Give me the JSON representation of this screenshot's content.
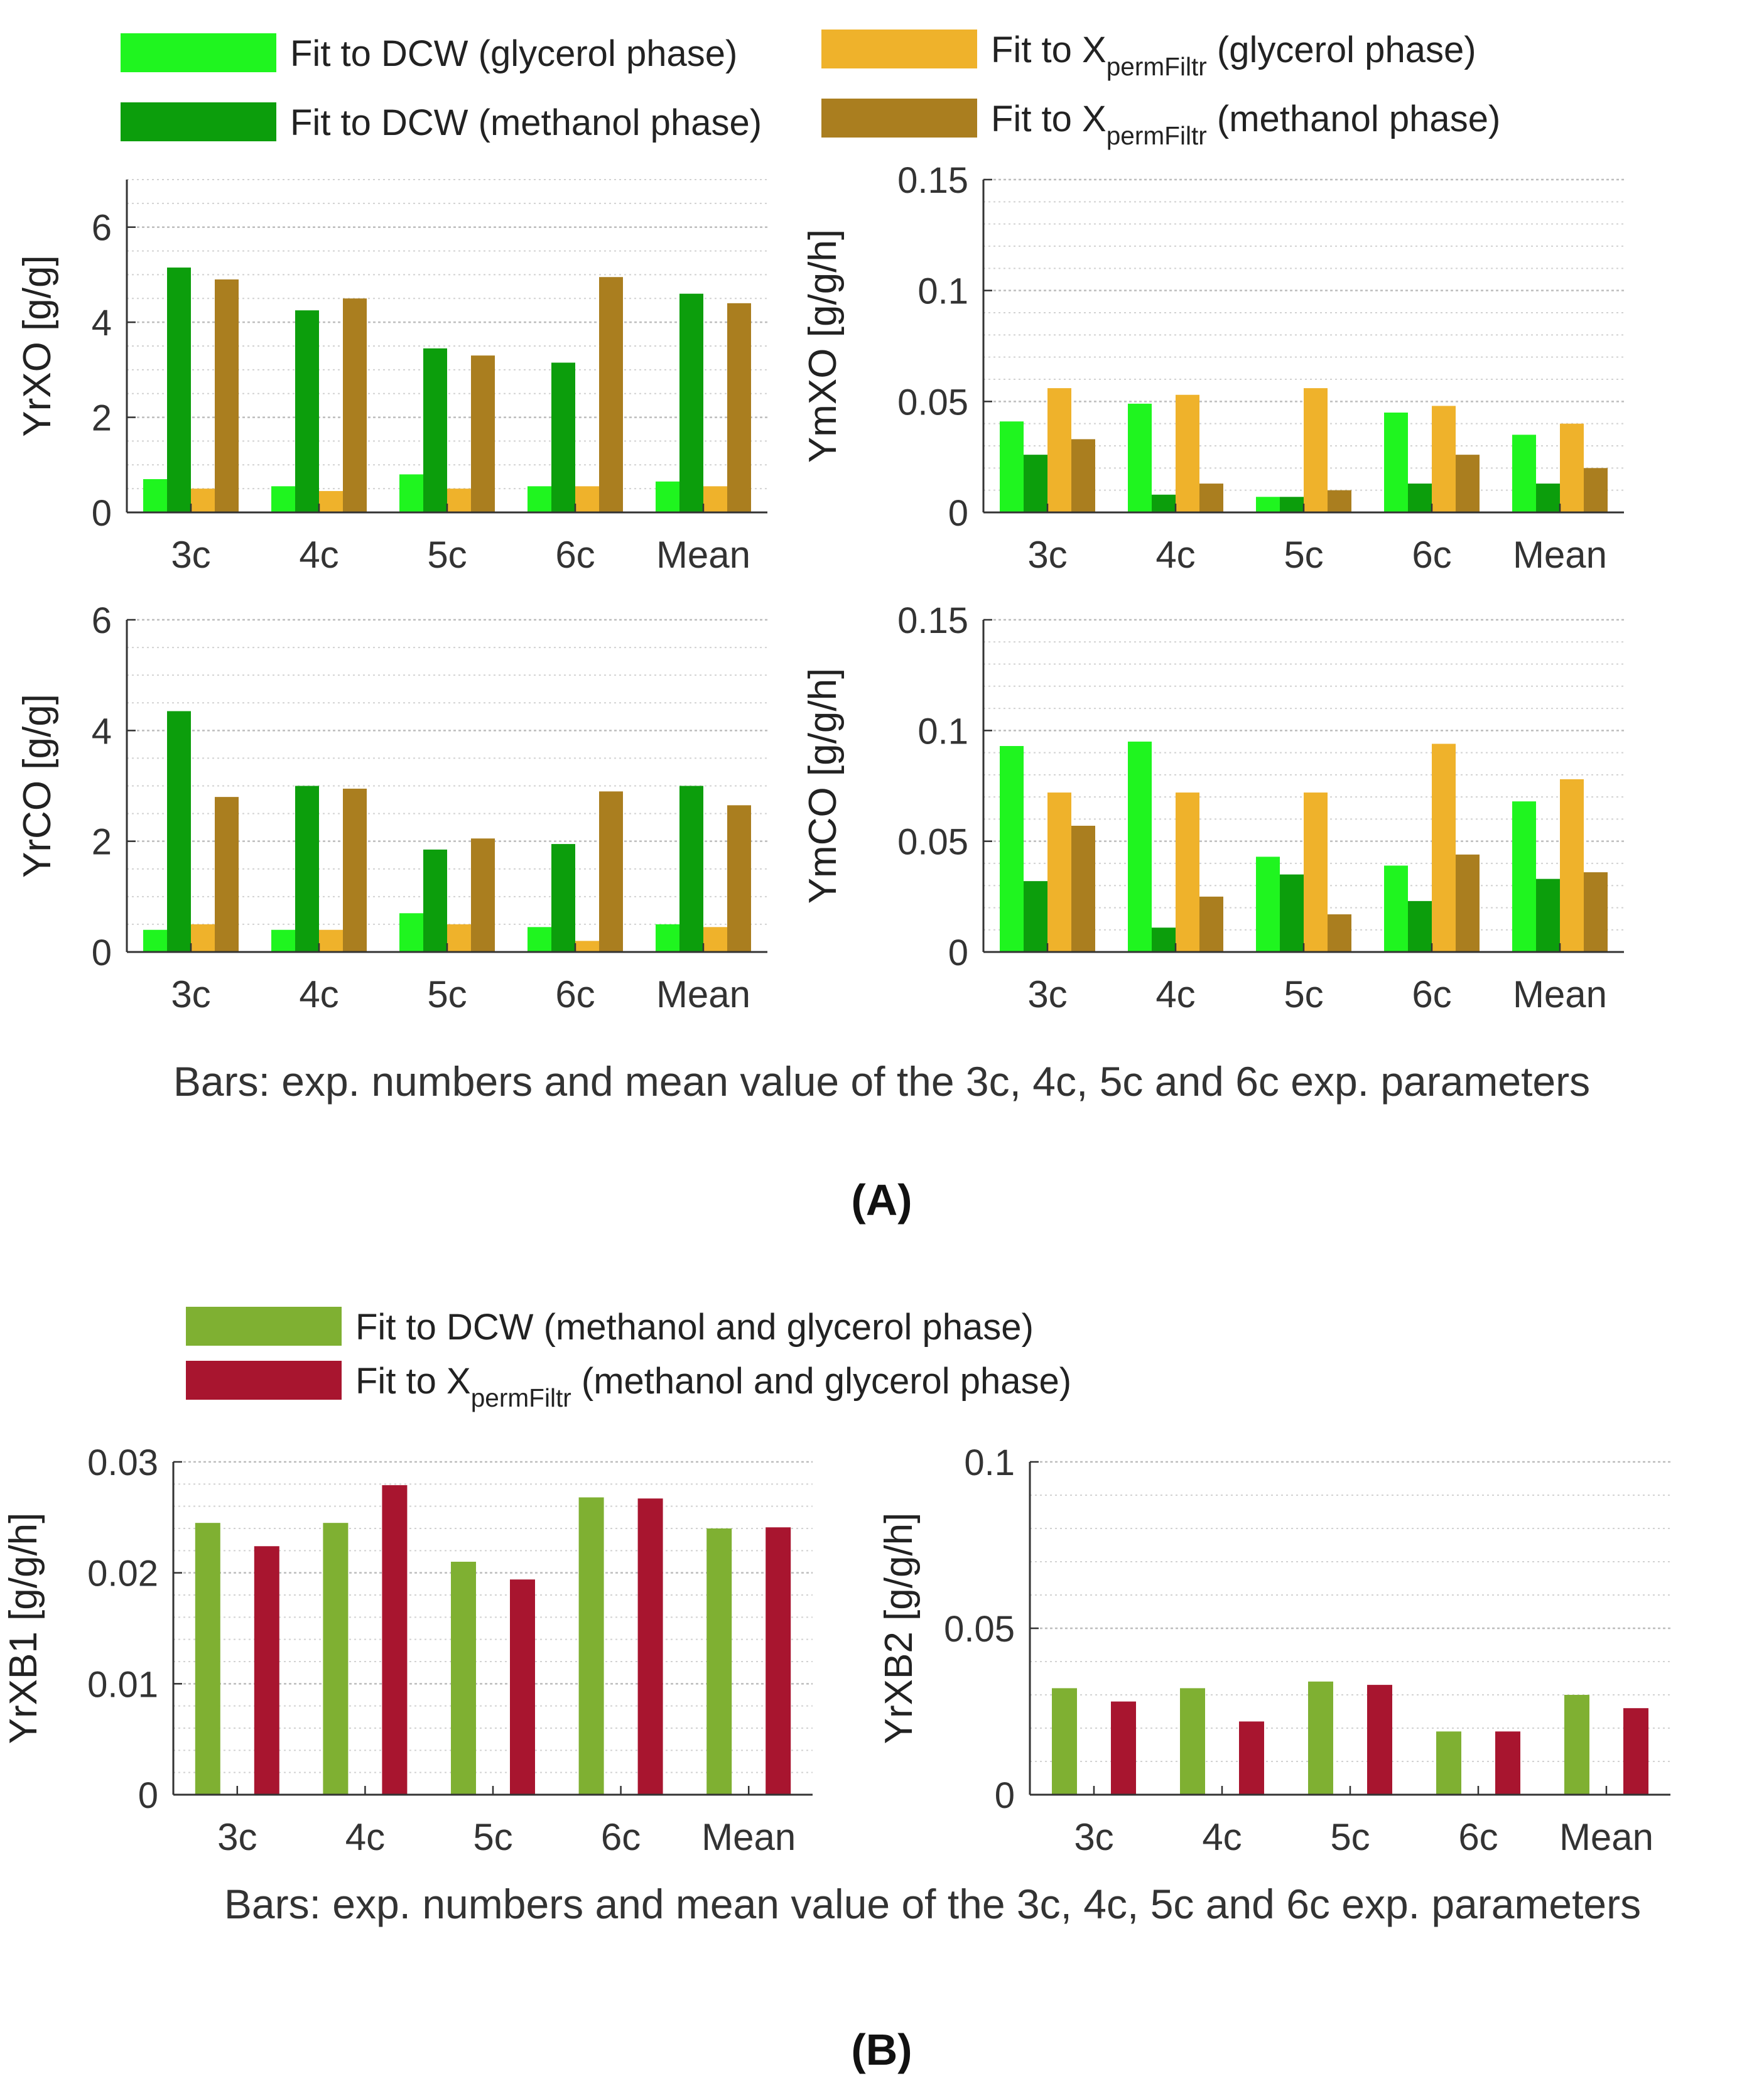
{
  "colors": {
    "dcw_glycerol": "#1ff51f",
    "dcw_methanol": "#0c9e0c",
    "xperm_glycerol": "#efb22b",
    "xperm_methanol": "#aa7e1f",
    "dcw_both": "#7fb032",
    "xperm_both": "#a8152f"
  },
  "panel_a": {
    "label_open": "(",
    "label_letter": "A",
    "label_close": ")",
    "caption": "Bars: exp. numbers and mean value of the 3c, 4c, 5c and 6c exp. parameters",
    "legend": [
      {
        "text": "Fit to DCW (glycerol phase)",
        "color": "#1ff51f"
      },
      {
        "text": "Fit to DCW (methanol phase)",
        "color": "#0c9e0c"
      },
      {
        "text": "Fit to X",
        "sub": "permFiltr",
        "suffix": " (glycerol phase)",
        "color": "#efb22b"
      },
      {
        "text": "Fit to X",
        "sub": "permFiltr",
        "suffix": " (methanol phase)",
        "color": "#aa7e1f"
      }
    ]
  },
  "panel_b": {
    "label_open": "(",
    "label_letter": "B",
    "label_close": ")",
    "caption": "Bars: exp. numbers and mean value of the 3c, 4c, 5c and 6c exp. parameters",
    "legend": [
      {
        "text": "Fit to DCW (methanol and glycerol phase)",
        "color": "#7fb032"
      },
      {
        "text": "Fit to X",
        "sub": "permFiltr",
        "suffix": " (methanol and glycerol phase)",
        "color": "#a8152f"
      }
    ]
  },
  "chart_data": [
    {
      "type": "bar",
      "id": "YrXO",
      "ylabel": "YrXO [g/g]",
      "categories": [
        "3c",
        "4c",
        "5c",
        "6c",
        "Mean"
      ],
      "ylim": [
        0,
        7
      ],
      "yticks": [
        0,
        2,
        4,
        6
      ],
      "yticklabels": [
        "0",
        "2",
        "4",
        "6"
      ],
      "minor_step": 0.5,
      "grid": true,
      "series": [
        {
          "name": "Fit to DCW (glycerol phase)",
          "color": "#1ff51f",
          "values": [
            0.7,
            0.55,
            0.8,
            0.55,
            0.65
          ]
        },
        {
          "name": "Fit to DCW (methanol phase)",
          "color": "#0c9e0c",
          "values": [
            5.15,
            4.25,
            3.45,
            3.15,
            4.6
          ]
        },
        {
          "name": "Fit to XpermFiltr (glycerol phase)",
          "color": "#efb22b",
          "values": [
            0.5,
            0.45,
            0.5,
            0.55,
            0.55
          ]
        },
        {
          "name": "Fit to XpermFiltr (methanol phase)",
          "color": "#aa7e1f",
          "values": [
            4.9,
            4.5,
            3.3,
            4.95,
            4.4
          ]
        }
      ]
    },
    {
      "type": "bar",
      "id": "YmXO",
      "ylabel": "YmXO [g/g/h]",
      "categories": [
        "3c",
        "4c",
        "5c",
        "6c",
        "Mean"
      ],
      "ylim": [
        0,
        0.15
      ],
      "yticks": [
        0,
        0.05,
        0.1,
        0.15
      ],
      "yticklabels": [
        "0",
        "0.05",
        "0.1",
        "0.15"
      ],
      "minor_step": 0.01,
      "grid": true,
      "series": [
        {
          "name": "Fit to DCW (glycerol phase)",
          "color": "#1ff51f",
          "values": [
            0.041,
            0.049,
            0.007,
            0.045,
            0.035
          ]
        },
        {
          "name": "Fit to DCW (methanol phase)",
          "color": "#0c9e0c",
          "values": [
            0.026,
            0.008,
            0.007,
            0.013,
            0.013
          ]
        },
        {
          "name": "Fit to XpermFiltr (glycerol phase)",
          "color": "#efb22b",
          "values": [
            0.056,
            0.053,
            0.056,
            0.048,
            0.04
          ]
        },
        {
          "name": "Fit to XpermFiltr (methanol phase)",
          "color": "#aa7e1f",
          "values": [
            0.033,
            0.013,
            0.01,
            0.026,
            0.02
          ]
        }
      ]
    },
    {
      "type": "bar",
      "id": "YrCO",
      "ylabel": "YrCO [g/g]",
      "categories": [
        "3c",
        "4c",
        "5c",
        "6c",
        "Mean"
      ],
      "ylim": [
        0,
        6
      ],
      "yticks": [
        0,
        2,
        4,
        6
      ],
      "yticklabels": [
        "0",
        "2",
        "4",
        "6"
      ],
      "minor_step": 0.5,
      "grid": true,
      "series": [
        {
          "name": "Fit to DCW (glycerol phase)",
          "color": "#1ff51f",
          "values": [
            0.4,
            0.4,
            0.7,
            0.45,
            0.5
          ]
        },
        {
          "name": "Fit to DCW (methanol phase)",
          "color": "#0c9e0c",
          "values": [
            4.35,
            3.0,
            1.85,
            1.95,
            3.0
          ]
        },
        {
          "name": "Fit to XpermFiltr (glycerol phase)",
          "color": "#efb22b",
          "values": [
            0.5,
            0.4,
            0.5,
            0.2,
            0.45
          ]
        },
        {
          "name": "Fit to XpermFiltr (methanol phase)",
          "color": "#aa7e1f",
          "values": [
            2.8,
            2.95,
            2.05,
            2.9,
            2.65
          ]
        }
      ]
    },
    {
      "type": "bar",
      "id": "YmCO",
      "ylabel": "YmCO [g/g/h]",
      "categories": [
        "3c",
        "4c",
        "5c",
        "6c",
        "Mean"
      ],
      "ylim": [
        0,
        0.15
      ],
      "yticks": [
        0,
        0.05,
        0.1,
        0.15
      ],
      "yticklabels": [
        "0",
        "0.05",
        "0.1",
        "0.15"
      ],
      "minor_step": 0.01,
      "grid": true,
      "series": [
        {
          "name": "Fit to DCW (glycerol phase)",
          "color": "#1ff51f",
          "values": [
            0.093,
            0.095,
            0.043,
            0.039,
            0.068
          ]
        },
        {
          "name": "Fit to DCW (methanol phase)",
          "color": "#0c9e0c",
          "values": [
            0.032,
            0.011,
            0.035,
            0.023,
            0.033
          ]
        },
        {
          "name": "Fit to XpermFiltr (glycerol phase)",
          "color": "#efb22b",
          "values": [
            0.072,
            0.072,
            0.072,
            0.094,
            0.078
          ]
        },
        {
          "name": "Fit to XpermFiltr (methanol phase)",
          "color": "#aa7e1f",
          "values": [
            0.057,
            0.025,
            0.017,
            0.044,
            0.036
          ]
        }
      ]
    },
    {
      "type": "bar",
      "id": "YrXB1",
      "ylabel": "YrXB1 [g/g/h]",
      "categories": [
        "3c",
        "4c",
        "5c",
        "6c",
        "Mean"
      ],
      "ylim": [
        0,
        0.03
      ],
      "yticks": [
        0,
        0.01,
        0.02,
        0.03
      ],
      "yticklabels": [
        "0",
        "0.01",
        "0.02",
        "0.03"
      ],
      "minor_step": 0.002,
      "grid": true,
      "series": [
        {
          "name": "Fit to DCW (methanol and glycerol phase)",
          "color": "#7fb032",
          "values": [
            0.0245,
            0.0245,
            0.021,
            0.0268,
            0.024
          ]
        },
        {
          "name": "Fit to XpermFiltr (methanol and glycerol phase)",
          "color": "#a8152f",
          "values": [
            0.0224,
            0.0279,
            0.0194,
            0.0267,
            0.0241
          ]
        }
      ]
    },
    {
      "type": "bar",
      "id": "YrXB2",
      "ylabel": "YrXB2 [g/g/h]",
      "categories": [
        "3c",
        "4c",
        "5c",
        "6c",
        "Mean"
      ],
      "ylim": [
        0,
        0.1
      ],
      "yticks": [
        0,
        0.05,
        0.1
      ],
      "yticklabels": [
        "0",
        "0.05",
        "0.1"
      ],
      "minor_step": 0.01,
      "grid": true,
      "series": [
        {
          "name": "Fit to DCW (methanol and glycerol phase)",
          "color": "#7fb032",
          "values": [
            0.032,
            0.032,
            0.034,
            0.019,
            0.03
          ]
        },
        {
          "name": "Fit to XpermFiltr (methanol and glycerol phase)",
          "color": "#a8152f",
          "values": [
            0.028,
            0.022,
            0.033,
            0.019,
            0.026
          ]
        }
      ]
    }
  ]
}
